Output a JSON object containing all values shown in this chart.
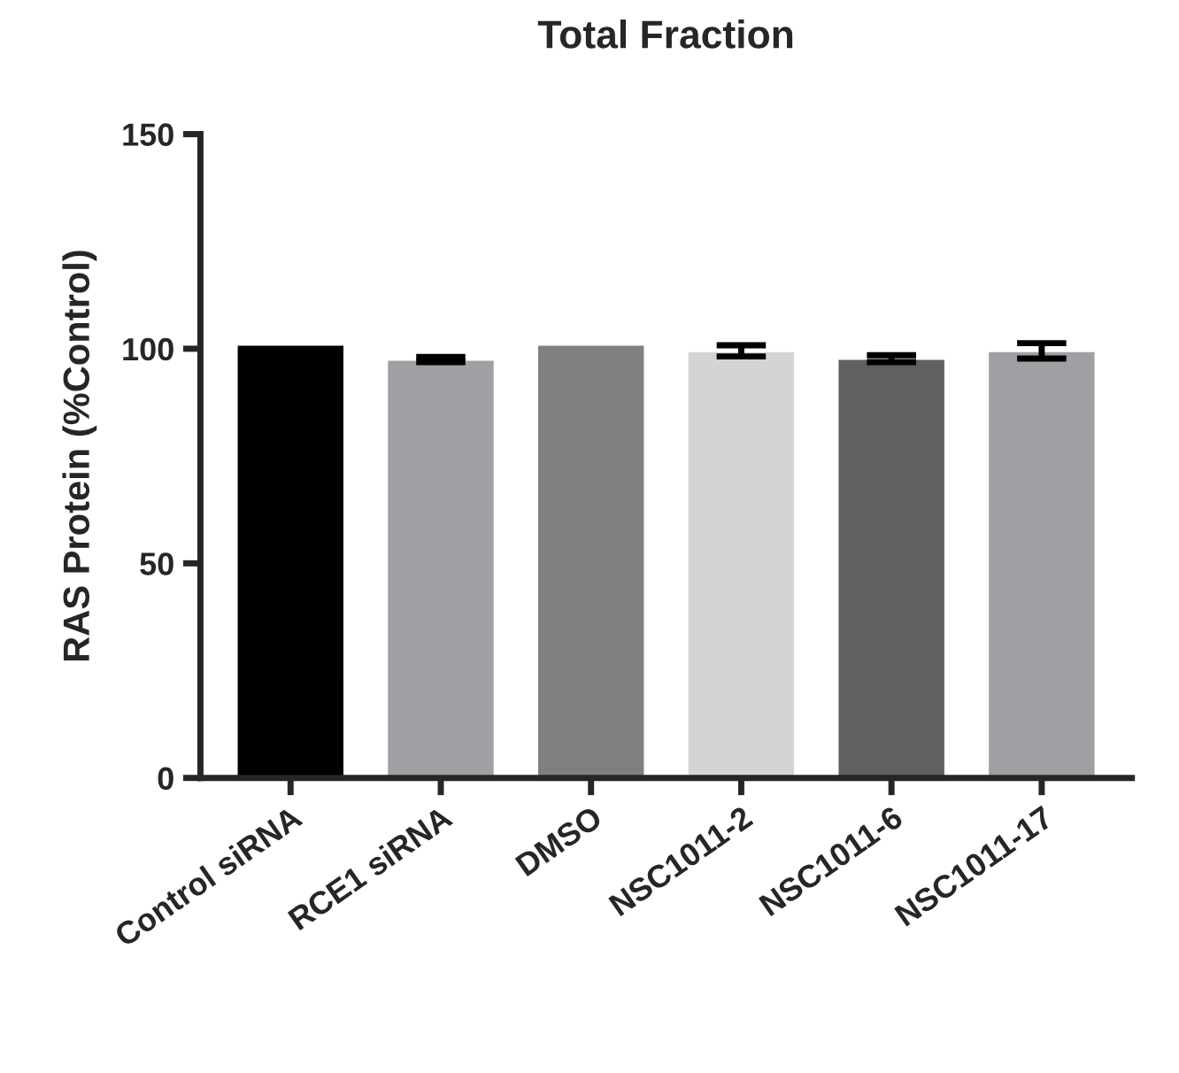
{
  "chart_data": {
    "type": "bar",
    "title": "Total Fraction",
    "ylabel": "RAS Protein (%Control)",
    "categories": [
      "Control siRNA",
      "RCE1 siRNA",
      "DMSO",
      "NSC1011-2",
      "NSC1011-6",
      "NSC1011-17"
    ],
    "values": [
      101,
      97.5,
      101,
      99.5,
      97.7,
      99.5
    ],
    "errors": [
      null,
      0.6,
      null,
      1.3,
      0.8,
      1.8
    ],
    "colors": [
      "#000000",
      "#a0a0a4",
      "#808080",
      "#d4d4d4",
      "#606060",
      "#a0a0a4"
    ],
    "ylim": [
      0,
      150
    ],
    "yticks": [
      0,
      50,
      100,
      150
    ],
    "grid": false,
    "legend": false
  }
}
